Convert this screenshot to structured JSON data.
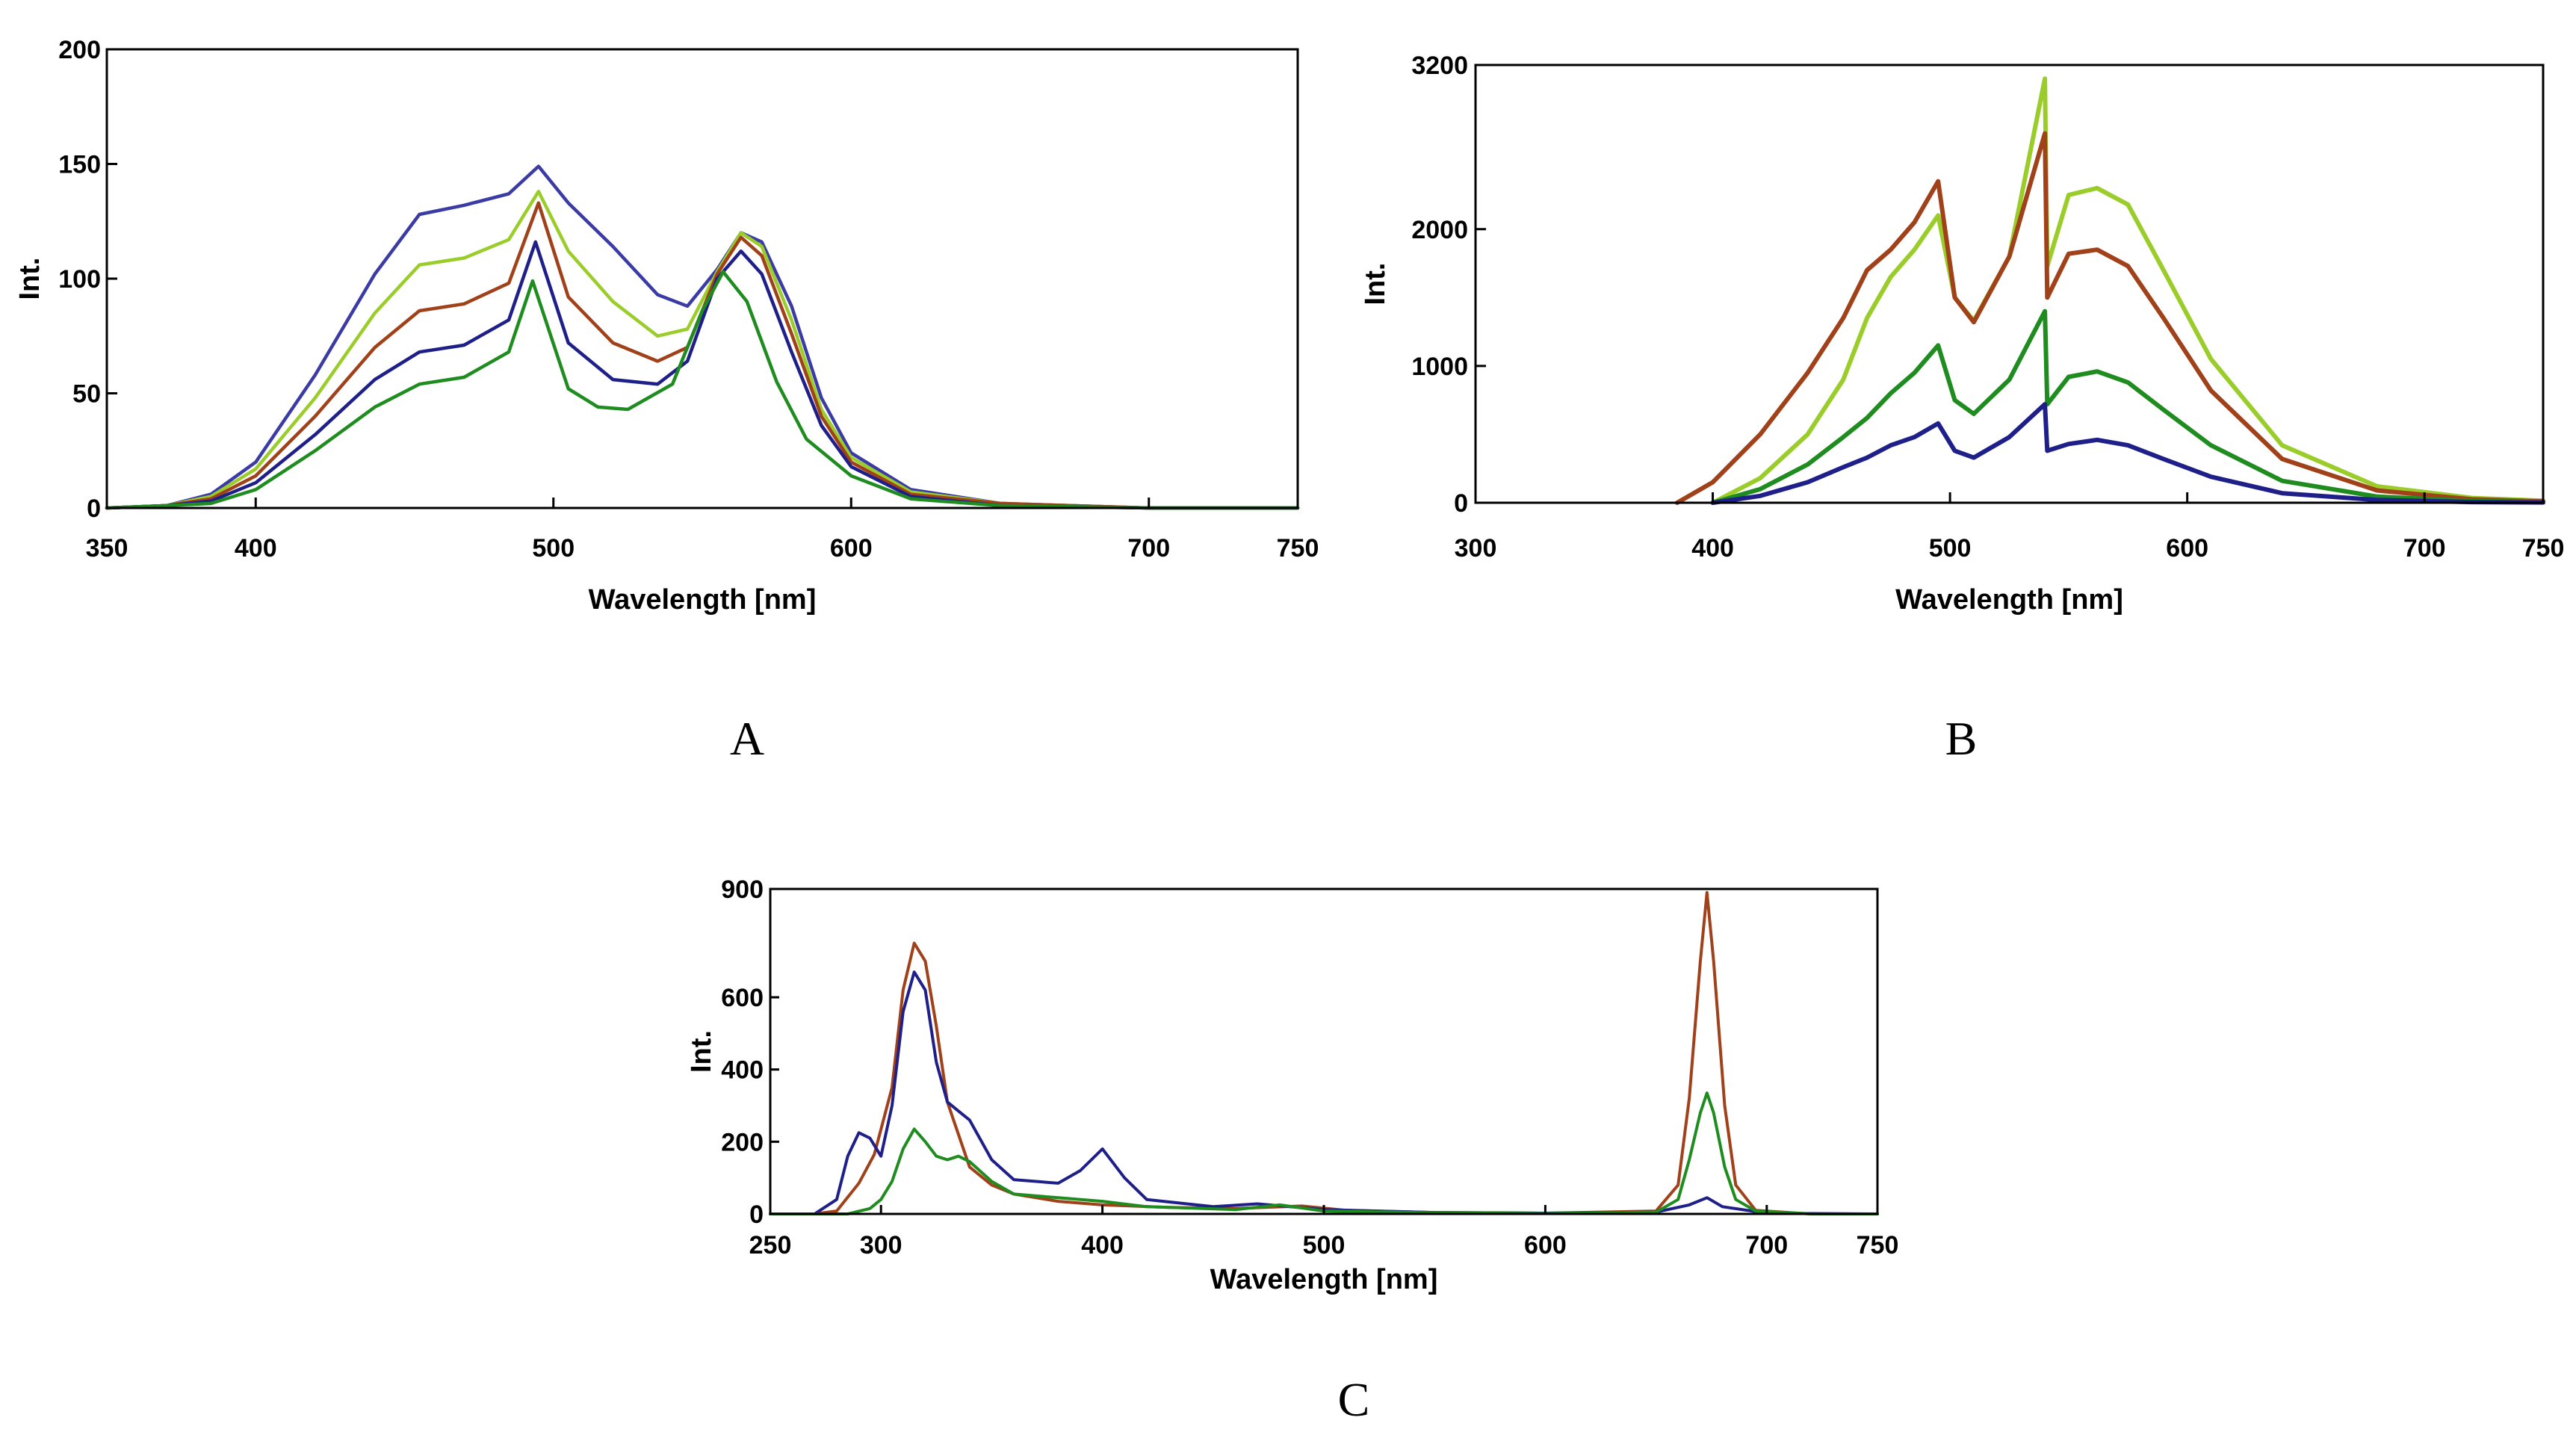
{
  "panels": [
    {
      "label": "A",
      "chart_data": {
        "type": "line",
        "title": "",
        "xlabel": "Wavelength [nm]",
        "ylabel": "Int.",
        "xlim": [
          350,
          750
        ],
        "ylim": [
          0,
          200
        ],
        "x_ticks": [
          350,
          400,
          500,
          600,
          700,
          750
        ],
        "y_ticks": [
          0,
          50,
          100,
          150,
          200
        ],
        "grid": false,
        "series": [
          {
            "color": "#3b3ba5",
            "x": [
              350,
              370,
              385,
              400,
              420,
              440,
              455,
              470,
              485,
              495,
              505,
              520,
              535,
              545,
              555,
              563,
              570,
              580,
              590,
              600,
              620,
              650,
              700,
              750
            ],
            "y": [
              0,
              1,
              6,
              20,
              58,
              102,
              128,
              132,
              137,
              149,
              133,
              114,
              93,
              88,
              104,
              120,
              116,
              88,
              48,
              24,
              8,
              2,
              0,
              0
            ]
          },
          {
            "color": "#9acd2a",
            "x": [
              350,
              370,
              385,
              400,
              420,
              440,
              455,
              470,
              485,
              495,
              505,
              520,
              535,
              545,
              555,
              563,
              570,
              580,
              590,
              600,
              620,
              650,
              700,
              750
            ],
            "y": [
              0,
              1,
              5,
              17,
              48,
              85,
              106,
              109,
              117,
              138,
              112,
              90,
              75,
              78,
              103,
              120,
              114,
              82,
              43,
              22,
              7,
              2,
              0,
              0
            ]
          },
          {
            "color": "#a0411a",
            "x": [
              350,
              370,
              385,
              400,
              420,
              440,
              455,
              470,
              485,
              495,
              505,
              520,
              535,
              545,
              555,
              563,
              570,
              580,
              590,
              600,
              620,
              650,
              700,
              750
            ],
            "y": [
              0,
              1,
              4,
              14,
              40,
              70,
              86,
              89,
              98,
              133,
              92,
              72,
              64,
              70,
              102,
              118,
              110,
              76,
              40,
              20,
              6,
              2,
              0,
              0
            ]
          },
          {
            "color": "#1f1f8a",
            "x": [
              350,
              370,
              385,
              400,
              420,
              440,
              455,
              470,
              485,
              494,
              505,
              520,
              535,
              545,
              555,
              563,
              570,
              580,
              590,
              600,
              620,
              650,
              700,
              750
            ],
            "y": [
              0,
              1,
              3,
              11,
              32,
              56,
              68,
              71,
              82,
              116,
              72,
              56,
              54,
              64,
              100,
              112,
              102,
              68,
              36,
              18,
              5,
              1,
              0,
              0
            ]
          },
          {
            "color": "#1e8c1e",
            "x": [
              350,
              370,
              385,
              400,
              420,
              440,
              455,
              470,
              485,
              493,
              505,
              515,
              525,
              540,
              550,
              557,
              565,
              575,
              585,
              600,
              620,
              650,
              700,
              750
            ],
            "y": [
              0,
              1,
              2,
              8,
              25,
              44,
              54,
              57,
              68,
              99,
              52,
              44,
              43,
              54,
              86,
              103,
              90,
              55,
              30,
              14,
              4,
              1,
              0,
              0
            ]
          }
        ]
      }
    },
    {
      "label": "B",
      "chart_data": {
        "type": "line",
        "title": "",
        "xlabel": "Wavelength [nm]",
        "ylabel": "Int.",
        "xlim": [
          300,
          750
        ],
        "ylim": [
          0,
          3200
        ],
        "x_ticks": [
          300,
          400,
          500,
          600,
          700,
          750
        ],
        "y_ticks": [
          0,
          1000,
          2000,
          3200
        ],
        "grid": false,
        "series": [
          {
            "color": "#9acd2a",
            "x": [
              400,
              420,
              440,
              455,
              465,
              475,
              485,
              495,
              502,
              510,
              525,
              540,
              541,
              550,
              562,
              575,
              590,
              610,
              640,
              680,
              720,
              750
            ],
            "y": [
              0,
              180,
              500,
              900,
              1350,
              1650,
              1850,
              2100,
              1500,
              1330,
              1800,
              3100,
              1730,
              2250,
              2300,
              2180,
              1700,
              1050,
              420,
              120,
              35,
              15
            ]
          },
          {
            "color": "#a0411a",
            "x": [
              385,
              400,
              420,
              440,
              455,
              465,
              475,
              485,
              495,
              502,
              510,
              525,
              540,
              541,
              550,
              562,
              575,
              590,
              610,
              640,
              680,
              720,
              750
            ],
            "y": [
              0,
              150,
              500,
              950,
              1350,
              1700,
              1850,
              2050,
              2350,
              1500,
              1320,
              1800,
              2700,
              1500,
              1820,
              1850,
              1730,
              1350,
              820,
              320,
              90,
              25,
              10
            ]
          },
          {
            "color": "#1e8c1e",
            "x": [
              400,
              420,
              440,
              455,
              465,
              475,
              485,
              495,
              502,
              510,
              525,
              540,
              541,
              550,
              562,
              575,
              590,
              610,
              640,
              680,
              720,
              750
            ],
            "y": [
              0,
              100,
              280,
              480,
              620,
              800,
              950,
              1150,
              750,
              650,
              900,
              1400,
              720,
              920,
              960,
              880,
              680,
              420,
              160,
              45,
              12,
              5
            ]
          },
          {
            "color": "#1f1f8a",
            "x": [
              400,
              420,
              440,
              455,
              465,
              475,
              485,
              495,
              502,
              510,
              525,
              540,
              541,
              550,
              562,
              575,
              590,
              610,
              640,
              680,
              720,
              750
            ],
            "y": [
              0,
              50,
              150,
              260,
              330,
              420,
              480,
              580,
              380,
              330,
              480,
              720,
              380,
              430,
              460,
              420,
              320,
              190,
              70,
              20,
              5,
              2
            ]
          }
        ]
      }
    },
    {
      "label": "C",
      "chart_data": {
        "type": "line",
        "title": "",
        "xlabel": "Wavelength [nm]",
        "ylabel": "Int.",
        "xlim": [
          250,
          750
        ],
        "ylim": [
          0,
          900
        ],
        "x_ticks": [
          250,
          300,
          400,
          500,
          600,
          700,
          750
        ],
        "y_ticks": [
          0,
          200,
          400,
          600,
          900
        ],
        "grid": false,
        "series": [
          {
            "color": "#a0411a",
            "x": [
              250,
              270,
              280,
              290,
              297,
              305,
              310,
              315,
              320,
              325,
              330,
              340,
              350,
              360,
              380,
              400,
              430,
              460,
              490,
              510,
              550,
              600,
              650,
              660,
              665,
              670,
              673,
              676,
              681,
              686,
              695,
              720,
              750
            ],
            "y": [
              0,
              0,
              8,
              85,
              165,
              350,
              620,
              750,
              700,
              520,
              310,
              130,
              80,
              55,
              35,
              25,
              18,
              15,
              22,
              10,
              4,
              2,
              8,
              80,
              320,
              700,
              890,
              700,
              300,
              80,
              10,
              0,
              0
            ]
          },
          {
            "color": "#1f1f8a",
            "x": [
              250,
              270,
              280,
              285,
              290,
              295,
              300,
              305,
              310,
              315,
              320,
              325,
              330,
              335,
              340,
              350,
              360,
              380,
              390,
              400,
              410,
              420,
              450,
              470,
              500,
              550,
              600,
              650,
              665,
              673,
              680,
              700,
              750
            ],
            "y": [
              0,
              0,
              40,
              160,
              225,
              210,
              160,
              300,
              560,
              670,
              620,
              420,
              310,
              285,
              260,
              150,
              95,
              85,
              120,
              180,
              100,
              40,
              20,
              28,
              12,
              4,
              2,
              5,
              25,
              45,
              20,
              2,
              0
            ]
          },
          {
            "color": "#1e8c1e",
            "x": [
              250,
              285,
              295,
              300,
              305,
              310,
              315,
              320,
              325,
              330,
              335,
              340,
              350,
              360,
              380,
              400,
              420,
              460,
              480,
              500,
              550,
              600,
              650,
              660,
              665,
              670,
              673,
              676,
              681,
              686,
              695,
              720,
              750
            ],
            "y": [
              0,
              0,
              15,
              40,
              90,
              180,
              235,
              200,
              160,
              150,
              160,
              145,
              90,
              55,
              45,
              35,
              20,
              12,
              25,
              8,
              3,
              1,
              5,
              40,
              150,
              280,
              335,
              280,
              130,
              40,
              8,
              0,
              0
            ]
          }
        ]
      }
    }
  ]
}
